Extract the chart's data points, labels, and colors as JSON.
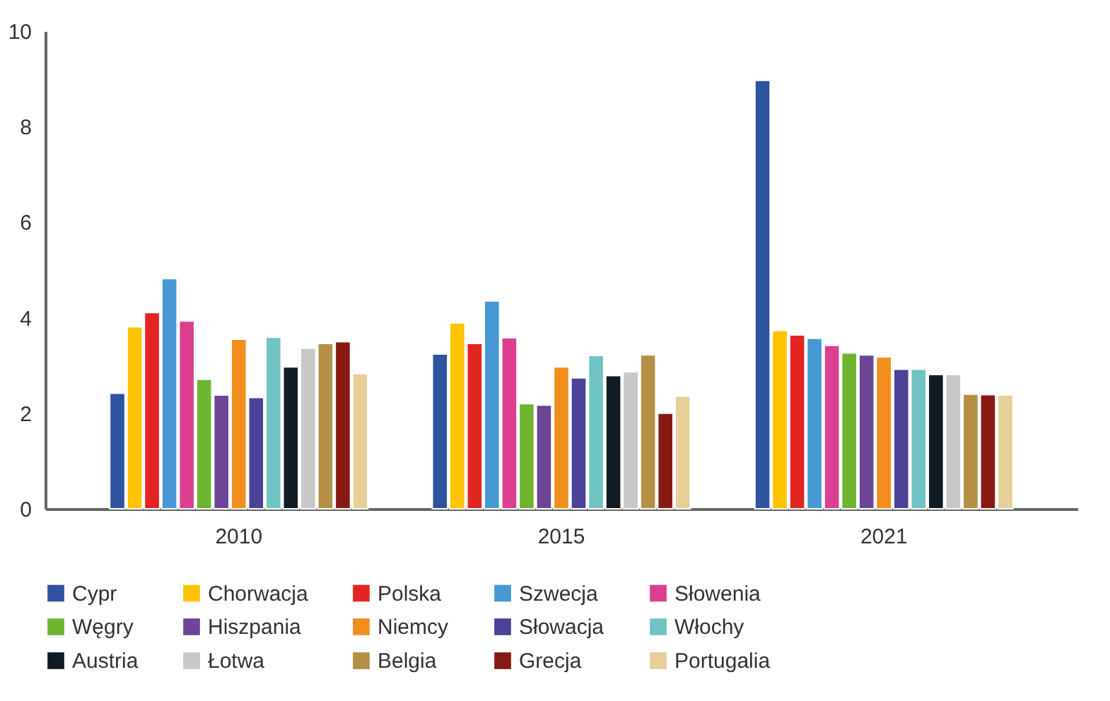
{
  "chart_data": {
    "type": "bar",
    "categories": [
      "2010",
      "2015",
      "2021"
    ],
    "series": [
      {
        "name": "Cypr",
        "color": "#2e54a0",
        "values": [
          2.42,
          3.24,
          8.97
        ]
      },
      {
        "name": "Chorwacja",
        "color": "#fec400",
        "values": [
          3.81,
          3.89,
          3.73
        ]
      },
      {
        "name": "Polska",
        "color": "#e32522",
        "values": [
          4.11,
          3.46,
          3.64
        ]
      },
      {
        "name": "Szwecja",
        "color": "#4698d4",
        "values": [
          4.82,
          4.35,
          3.57
        ]
      },
      {
        "name": "Słowenia",
        "color": "#dc3f8f",
        "values": [
          3.93,
          3.58,
          3.42
        ]
      },
      {
        "name": "Węgry",
        "color": "#6fb42f",
        "values": [
          2.71,
          2.2,
          3.26
        ]
      },
      {
        "name": "Hiszpania",
        "color": "#6c4694",
        "values": [
          2.38,
          2.17,
          3.22
        ]
      },
      {
        "name": "Niemcy",
        "color": "#f28e1d",
        "values": [
          3.55,
          2.97,
          3.18
        ]
      },
      {
        "name": "Słowacja",
        "color": "#4a4397",
        "values": [
          2.33,
          2.74,
          2.92
        ]
      },
      {
        "name": "Włochy",
        "color": "#6fc3c3",
        "values": [
          3.59,
          3.21,
          2.92
        ]
      },
      {
        "name": "Austria",
        "color": "#101a22",
        "values": [
          2.97,
          2.79,
          2.81
        ]
      },
      {
        "name": "Łotwa",
        "color": "#c8c8c8",
        "values": [
          3.36,
          2.87,
          2.81
        ]
      },
      {
        "name": "Belgia",
        "color": "#b48f45",
        "values": [
          3.46,
          3.22,
          2.4
        ]
      },
      {
        "name": "Grecja",
        "color": "#881a15",
        "values": [
          3.5,
          2.0,
          2.39
        ]
      },
      {
        "name": "Portugalia",
        "color": "#e6cf98",
        "values": [
          2.83,
          2.36,
          2.38
        ]
      }
    ],
    "ylim": [
      0,
      10
    ],
    "yticks": [
      0,
      2,
      4,
      6,
      8,
      10
    ],
    "grid": false,
    "legend": "bottom"
  }
}
